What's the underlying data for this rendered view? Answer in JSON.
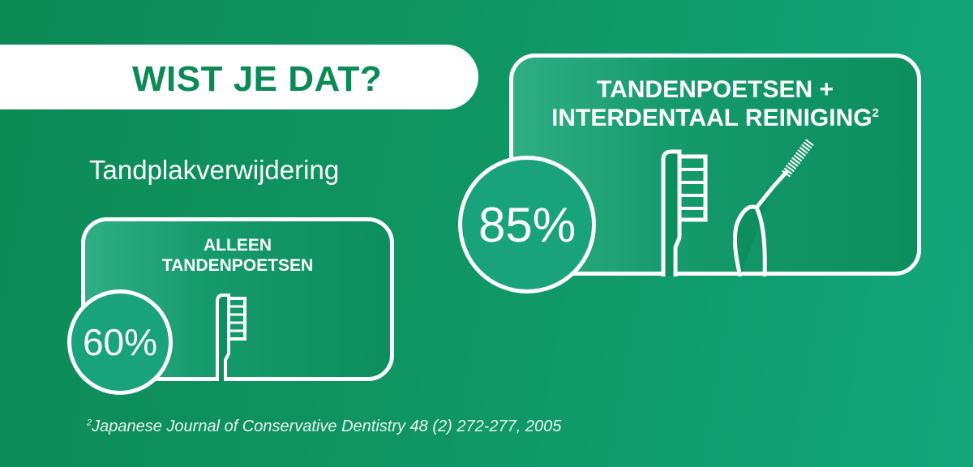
{
  "header": {
    "title": "WIST JE DAT?",
    "subtitle": "Tandplakverwijdering"
  },
  "cards": [
    {
      "label_line1": "ALLEEN",
      "label_line2": "TANDENPOETSEN",
      "percent": "60%",
      "icon": "toothbrush-icon"
    },
    {
      "label_line1": "TANDENPOETSEN +",
      "label_line2": "INTERDENTAAL REINIGING",
      "footnote_mark": "2",
      "percent": "85%",
      "icons": [
        "toothbrush-icon",
        "interdental-brush-icon"
      ]
    }
  ],
  "footnote": {
    "mark": "2",
    "text": "Japanese Journal of Conservative Dentistry 48 (2) 272-277, 2005"
  },
  "colors": {
    "background": "#0f9563",
    "title": "#0b8a55",
    "white": "#ffffff"
  }
}
